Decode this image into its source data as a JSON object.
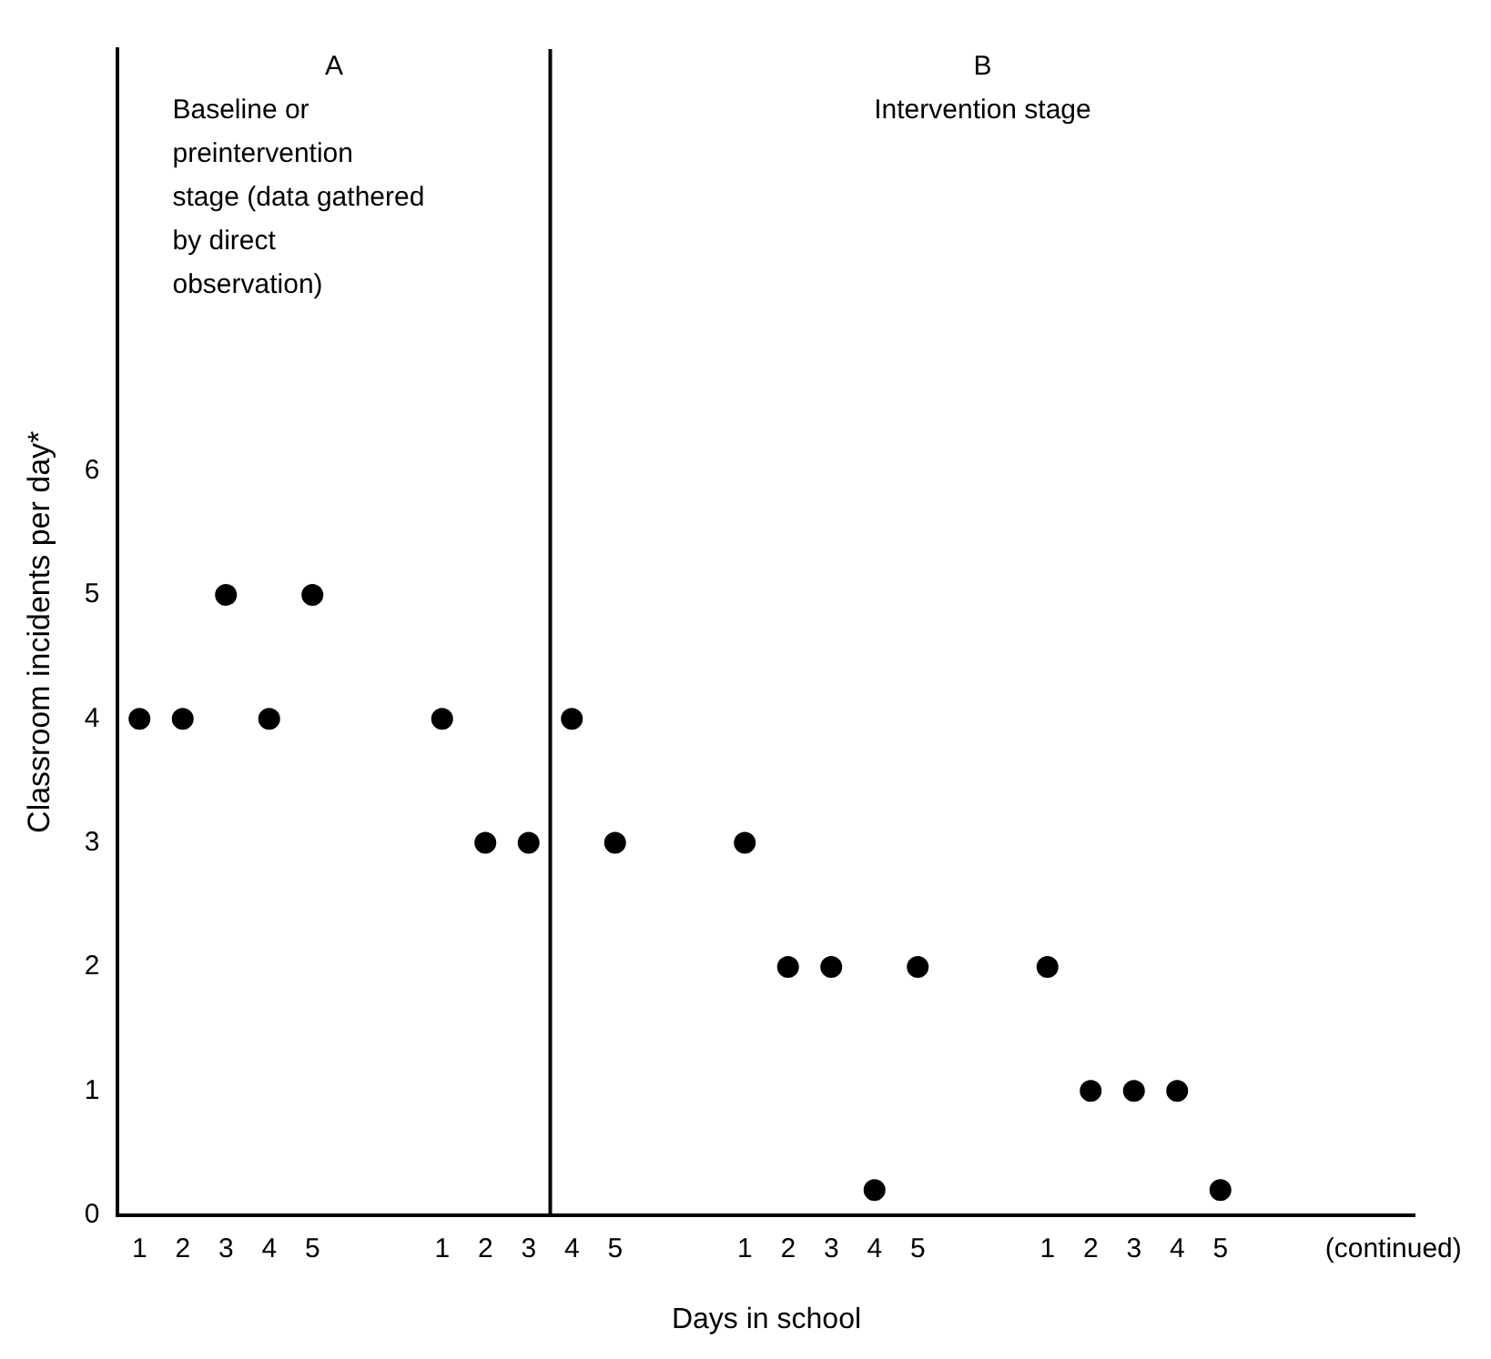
{
  "chart_data": {
    "type": "scatter",
    "xlabel": "Days in school",
    "ylabel": "Classroom incidents per day*",
    "categories": [
      "1",
      "2",
      "3",
      "4",
      "5",
      null,
      null,
      "1",
      "2",
      "3",
      "4",
      "5",
      null,
      null,
      "1",
      "2",
      "3",
      "4",
      "5",
      null,
      null,
      "1",
      "2",
      "3",
      "4",
      "5",
      null,
      null,
      null,
      "(continued)"
    ],
    "values": [
      4,
      4,
      5,
      4,
      5,
      null,
      null,
      4,
      3,
      3,
      4,
      3,
      null,
      null,
      3,
      2,
      2,
      0.2,
      2,
      null,
      null,
      2,
      1,
      1,
      1,
      0.2,
      null,
      null,
      null,
      null
    ],
    "color": "#000000",
    "marker": "circle",
    "ylim": [
      0,
      9.4
    ],
    "yticks": [
      0,
      1,
      2,
      3,
      4,
      5,
      6
    ],
    "grid": false,
    "legend": false,
    "annotations": [
      "A",
      "Baseline or preintervention stage (data gathered by direct observation)",
      "B",
      "Intervention stage"
    ]
  }
}
